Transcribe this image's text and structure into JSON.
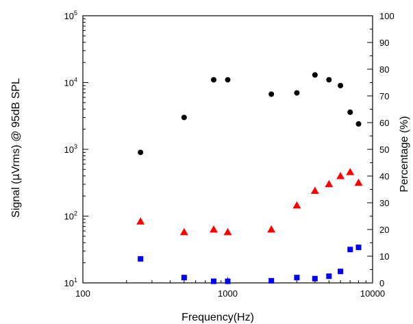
{
  "chart_data": {
    "type": "scatter",
    "xlabel": "Frequency(Hz)",
    "ylabel_left_prefix": "Signal (",
    "ylabel_left_mu": "μ",
    "ylabel_left_suffix": "Vrms) @ 95dB SPL",
    "ylabel_right": "Percentage (%)",
    "x_scale": "log",
    "x_range": [
      100,
      10000
    ],
    "x_ticks": [
      100,
      1000,
      10000
    ],
    "x_tick_labels": [
      "100",
      "1000",
      "10000"
    ],
    "y_left_scale": "log",
    "y_left_range": [
      10,
      100000
    ],
    "y_left_ticks": [
      10,
      100,
      1000,
      10000,
      100000
    ],
    "y_left_tick_labels": [
      {
        "base": "10",
        "exp": "1"
      },
      {
        "base": "10",
        "exp": "2"
      },
      {
        "base": "10",
        "exp": "3"
      },
      {
        "base": "10",
        "exp": "4"
      },
      {
        "base": "10",
        "exp": "5"
      }
    ],
    "y_right_scale": "linear",
    "y_right_range": [
      0,
      100
    ],
    "y_right_ticks": [
      0,
      10,
      20,
      30,
      40,
      50,
      60,
      70,
      80,
      90,
      100
    ],
    "y_right_tick_labels": [
      "0",
      "10",
      "20",
      "30",
      "40",
      "50",
      "60",
      "70",
      "80",
      "90",
      "100"
    ],
    "grid": false,
    "legend": "none",
    "series": [
      {
        "axis": "left",
        "marker": "circle",
        "color": "#000000",
        "points": [
          {
            "x": 250,
            "y": 900
          },
          {
            "x": 500,
            "y": 3000
          },
          {
            "x": 800,
            "y": 11000
          },
          {
            "x": 1000,
            "y": 11000
          },
          {
            "x": 2000,
            "y": 6700
          },
          {
            "x": 3000,
            "y": 7000
          },
          {
            "x": 4000,
            "y": 13000
          },
          {
            "x": 5000,
            "y": 11000
          },
          {
            "x": 6000,
            "y": 9000
          },
          {
            "x": 7000,
            "y": 3600
          },
          {
            "x": 8000,
            "y": 2400
          }
        ]
      },
      {
        "axis": "right",
        "marker": "triangle",
        "color": "#ff0000",
        "points": [
          {
            "x": 250,
            "y": 23
          },
          {
            "x": 500,
            "y": 19
          },
          {
            "x": 800,
            "y": 20
          },
          {
            "x": 1000,
            "y": 19
          },
          {
            "x": 2000,
            "y": 20
          },
          {
            "x": 3000,
            "y": 29
          },
          {
            "x": 4000,
            "y": 34.5
          },
          {
            "x": 5000,
            "y": 37
          },
          {
            "x": 6000,
            "y": 40
          },
          {
            "x": 7000,
            "y": 41.5
          },
          {
            "x": 8000,
            "y": 37.5
          }
        ]
      },
      {
        "axis": "right",
        "marker": "square",
        "color": "#0000ff",
        "points": [
          {
            "x": 250,
            "y": 9
          },
          {
            "x": 500,
            "y": 2
          },
          {
            "x": 800,
            "y": 0.6
          },
          {
            "x": 1000,
            "y": 0.6
          },
          {
            "x": 2000,
            "y": 0.8
          },
          {
            "x": 3000,
            "y": 2
          },
          {
            "x": 4000,
            "y": 1.6
          },
          {
            "x": 5000,
            "y": 2.5
          },
          {
            "x": 6000,
            "y": 4.3
          },
          {
            "x": 7000,
            "y": 12.5
          },
          {
            "x": 8000,
            "y": 13.3
          }
        ]
      }
    ]
  }
}
